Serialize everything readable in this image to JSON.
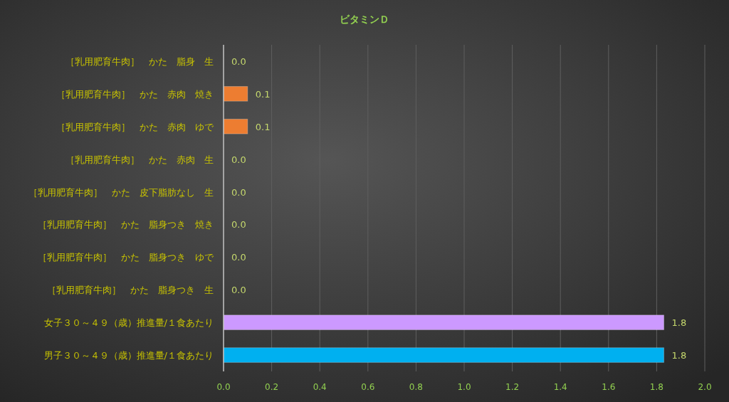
{
  "chart_data": {
    "type": "bar",
    "orientation": "horizontal",
    "title": "ビタミンＤ",
    "categories": [
      "［乳用肥育牛肉］　かた　脂身　生",
      "［乳用肥育牛肉］　かた　赤肉　焼き",
      "［乳用肥育牛肉］　かた　赤肉　ゆで",
      "［乳用肥育牛肉］　かた　赤肉　生",
      "［乳用肥育牛肉］　かた　皮下脂肪なし　生",
      "［乳用肥育牛肉］　かた　脂身つき　焼き",
      "［乳用肥育牛肉］　かた　脂身つき　ゆで",
      "［乳用肥育牛肉］　かた　脂身つき　生",
      "女子３０～４９（歳）推進量/１食あたり",
      "男子３０～４９（歳）推進量/１食あたり"
    ],
    "values": [
      0,
      0.1,
      0.1,
      0,
      0,
      0,
      0,
      0,
      1.83,
      1.83
    ],
    "colors": [
      "#ed7d31",
      "#ed7d31",
      "#ed7d31",
      "#ed7d31",
      "#ed7d31",
      "#ed7d31",
      "#ed7d31",
      "#ed7d31",
      "#cc99ff",
      "#00b0f0"
    ],
    "value_labels": [
      "0.0",
      "0.1",
      "0.1",
      "0.0",
      "0.0",
      "0.0",
      "0.0",
      "0.0",
      "1.8",
      "1.8"
    ],
    "xlim": [
      0,
      2
    ],
    "xticks": [
      {
        "value": 0,
        "label": "0.0"
      },
      {
        "value": 0.2,
        "label": "0.2"
      },
      {
        "value": 0.4,
        "label": "0.4"
      },
      {
        "value": 0.6,
        "label": "0.6"
      },
      {
        "value": 0.8,
        "label": "0.8"
      },
      {
        "value": 1,
        "label": "1.0"
      },
      {
        "value": 1.2,
        "label": "1.2"
      },
      {
        "value": 1.4,
        "label": "1.4"
      },
      {
        "value": 1.6,
        "label": "1.6"
      },
      {
        "value": 1.8,
        "label": "1.8"
      },
      {
        "value": 2,
        "label": "2.0"
      }
    ],
    "grid": "x"
  }
}
